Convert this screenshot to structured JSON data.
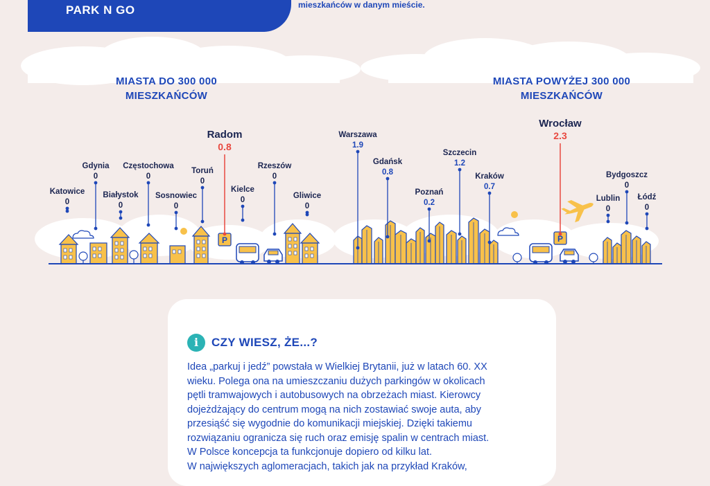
{
  "banner": {
    "title": "PARK N GO"
  },
  "top_note": "mieszkańców w danym mieście.",
  "headings": {
    "small_cities": [
      "MIASTA DO 300 000",
      "MIESZKAŃCÓW"
    ],
    "large_cities": [
      "MIASTA POWYŻEJ 300 000",
      "MIESZKAŃCÓW"
    ]
  },
  "colors": {
    "blue": "#1e47b8",
    "red": "#e8483f",
    "dark": "#1a2450",
    "building": "#f8c14a",
    "teal": "#2bb3b5"
  },
  "chart_data": {
    "type": "annotated-pin-chart",
    "groups": [
      {
        "title": "MIASTA DO 300 000 MIESZKAŃCÓW",
        "cities": [
          {
            "name": "Katowice",
            "value": "0"
          },
          {
            "name": "Gdynia",
            "value": "0"
          },
          {
            "name": "Białystok",
            "value": "0"
          },
          {
            "name": "Częstochowa",
            "value": "0"
          },
          {
            "name": "Sosnowiec",
            "value": "0"
          },
          {
            "name": "Toruń",
            "value": "0"
          },
          {
            "name": "Radom",
            "value": "0.8",
            "highlight": true
          },
          {
            "name": "Kielce",
            "value": "0"
          },
          {
            "name": "Rzeszów",
            "value": "0"
          },
          {
            "name": "Gliwice",
            "value": "0"
          }
        ]
      },
      {
        "title": "MIASTA POWYŻEJ 300 000 MIESZKAŃCÓW",
        "cities": [
          {
            "name": "Warszawa",
            "value": "1.9"
          },
          {
            "name": "Gdańsk",
            "value": "0.8"
          },
          {
            "name": "Poznań",
            "value": "0.2"
          },
          {
            "name": "Szczecin",
            "value": "1.2"
          },
          {
            "name": "Kraków",
            "value": "0.7"
          },
          {
            "name": "Wrocław",
            "value": "2.3",
            "highlight": true
          },
          {
            "name": "Lublin",
            "value": "0"
          },
          {
            "name": "Bydgoszcz",
            "value": "0"
          },
          {
            "name": "Łódź",
            "value": "0"
          }
        ]
      }
    ]
  },
  "parking_sign": "P",
  "info": {
    "badge": "i",
    "title": "CZY WIESZ, ŻE...?",
    "lines": [
      "Idea „parkuj i jedź” powstała w Wielkiej Brytanii, już w latach 60. XX",
      "wieku. Polega ona na umieszczaniu dużych parkingów w okolicach",
      "pętli tramwajowych i autobusowych na obrzeżach miast. Kierowcy",
      "dojeżdżający do centrum mogą na nich zostawiać swoje auta, aby",
      "przesiąść się wygodnie do komunikacji miejskiej. Dzięki takiemu",
      "rozwiązaniu ogranicza się ruch oraz emisję spalin w centrach miast.",
      "W Polsce koncepcja ta funkcjonuje dopiero od kilku lat.",
      "W największych aglomeracjach, takich jak na przykład Kraków,"
    ]
  }
}
